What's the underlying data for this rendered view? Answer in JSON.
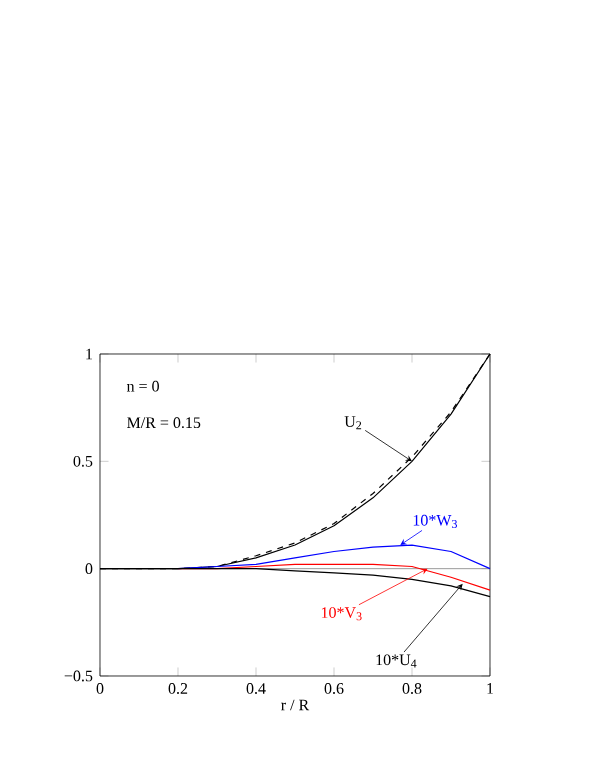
{
  "chart_data": {
    "type": "line",
    "xlabel": "r / R",
    "x": [
      0,
      0.1,
      0.2,
      0.3,
      0.4,
      0.5,
      0.6,
      0.7,
      0.8,
      0.9,
      1
    ],
    "series": [
      {
        "color": "#000000",
        "line_style": "solid",
        "values": [
          0,
          0,
          0,
          0.01,
          0.05,
          0.11,
          0.2,
          0.33,
          0.5,
          0.72,
          1
        ]
      },
      {
        "color": "#000000",
        "line_style": "dashed",
        "values": [
          0,
          0,
          0,
          0.01,
          0.06,
          0.12,
          0.21,
          0.35,
          0.52,
          0.73,
          1
        ]
      },
      {
        "color": "#0000ff",
        "line_style": "solid",
        "values": [
          null,
          null,
          0,
          0.01,
          0.02,
          0.05,
          0.08,
          0.1,
          0.11,
          0.08,
          0
        ]
      },
      {
        "color": "#ff0000",
        "line_style": "solid",
        "values": [
          null,
          null,
          0,
          0,
          0.01,
          0.02,
          0.02,
          0.02,
          0.01,
          -0.04,
          -0.1
        ]
      },
      {
        "color": "#000000",
        "line_style": "solid",
        "values": [
          0,
          0,
          0,
          0,
          0,
          -0.01,
          -0.02,
          -0.03,
          -0.05,
          -0.08,
          -0.13
        ]
      }
    ],
    "xlim": [
      0,
      1
    ],
    "ylim": [
      -0.5,
      1
    ],
    "xticks": [
      0,
      0.2,
      0.4,
      0.6,
      0.8,
      1
    ],
    "yticks": [
      {
        "value": -0.5,
        "label": "−0.5"
      },
      0,
      0.5,
      1
    ],
    "ref_lines": [
      {
        "axis": "y",
        "value": 0,
        "color": "#808080"
      }
    ],
    "annotations": [
      "n = 0",
      "M/R = 0.15",
      {
        "text": "U$_{2}$",
        "x": 0.8,
        "y": 0.5
      },
      {
        "text": "10*W$_{3}$",
        "x": 0.77,
        "y": 0.11
      },
      {
        "text": "10*V$_{3}$",
        "x": 0.84,
        "y": 0.0
      },
      {
        "text": "10*U$_{4}$",
        "x": 0.93,
        "y": -0.07
      }
    ],
    "grid": false
  }
}
